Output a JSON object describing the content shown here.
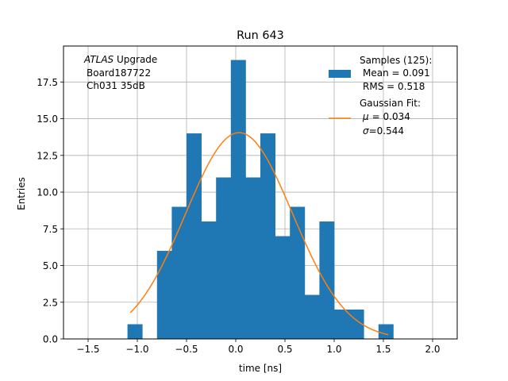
{
  "chart_data": {
    "type": "bar",
    "title": "Run 643",
    "xlabel": "time [ns]",
    "ylabel": "Entries",
    "xlim": [
      -1.75,
      2.25
    ],
    "ylim": [
      0,
      19.95
    ],
    "grid": true,
    "x_ticks": [
      -1.5,
      -1.0,
      -0.5,
      0.0,
      0.5,
      1.0,
      1.5,
      2.0
    ],
    "x_tick_labels": [
      "−1.5",
      "−1.0",
      "−0.5",
      "0.0",
      "0.5",
      "1.0",
      "1.5",
      "2.0"
    ],
    "y_ticks": [
      0,
      2.5,
      5,
      7.5,
      10,
      12.5,
      15,
      17.5
    ],
    "y_tick_labels": [
      "0.0",
      "2.5",
      "5.0",
      "7.5",
      "10.0",
      "12.5",
      "15.0",
      "17.5"
    ],
    "bins": [
      {
        "x0": -1.1,
        "x1": -0.95,
        "count": 1
      },
      {
        "x0": -0.8,
        "x1": -0.65,
        "count": 6
      },
      {
        "x0": -0.65,
        "x1": -0.5,
        "count": 9
      },
      {
        "x0": -0.5,
        "x1": -0.35,
        "count": 14
      },
      {
        "x0": -0.35,
        "x1": -0.2,
        "count": 8
      },
      {
        "x0": -0.2,
        "x1": -0.05,
        "count": 11
      },
      {
        "x0": -0.05,
        "x1": 0.1,
        "count": 19
      },
      {
        "x0": 0.1,
        "x1": 0.25,
        "count": 11
      },
      {
        "x0": 0.25,
        "x1": 0.4,
        "count": 14
      },
      {
        "x0": 0.4,
        "x1": 0.55,
        "count": 7
      },
      {
        "x0": 0.55,
        "x1": 0.7,
        "count": 9
      },
      {
        "x0": 0.7,
        "x1": 0.85,
        "count": 3
      },
      {
        "x0": 0.85,
        "x1": 1.0,
        "count": 8
      },
      {
        "x0": 1.0,
        "x1": 1.15,
        "count": 2
      },
      {
        "x0": 1.15,
        "x1": 1.3,
        "count": 2
      },
      {
        "x0": 1.45,
        "x1": 1.6,
        "count": 1
      }
    ],
    "fit": {
      "mu": 0.034,
      "sigma": 0.544,
      "amplitude": 14.05,
      "x_start": -1.07,
      "x_end": 1.55
    },
    "annotation": {
      "atlas_italic": "ATLAS",
      "atlas_rest": " Upgrade",
      "line2": "Board187722",
      "line3": "Ch031 35dB"
    },
    "legend": {
      "placement": "top-right",
      "samples_label": "Samples (125):",
      "samples_mean": "Mean = 0.091",
      "samples_rms": "RMS = 0.518",
      "fit_label": "Gaussian Fit:",
      "fit_mu": "= 0.034",
      "fit_sigma": "=0.544",
      "mu_symbol": "μ",
      "sigma_symbol": "σ"
    },
    "colors": {
      "bars": "#1f77b4",
      "fit": "#ff7f0e",
      "grid": "#b0b0b0"
    }
  }
}
